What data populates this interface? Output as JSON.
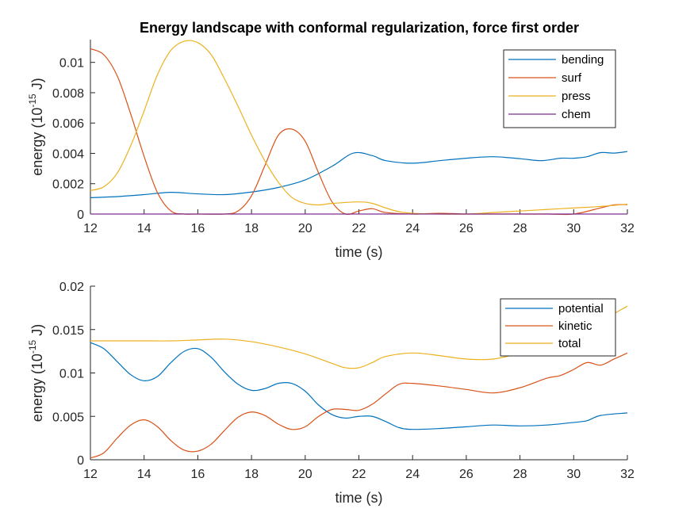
{
  "chart_data": [
    {
      "type": "line",
      "title": "Energy landscape with conformal regularization, force first order",
      "xlabel": "time (s)",
      "ylabel_main": "energy (10",
      "ylabel_sup": "-15",
      "ylabel_end": " J)",
      "xlim": [
        12,
        32
      ],
      "ylim": [
        0,
        0.0115
      ],
      "xticks": [
        12,
        14,
        16,
        18,
        20,
        22,
        24,
        26,
        28,
        30,
        32
      ],
      "xtick_labels": [
        "12",
        "14",
        "16",
        "18",
        "20",
        "22",
        "24",
        "26",
        "28",
        "30",
        "32"
      ],
      "yticks": [
        0,
        0.002,
        0.004,
        0.006,
        0.008,
        0.01
      ],
      "ytick_labels": [
        "0",
        "0.002",
        "0.004",
        "0.006",
        "0.008",
        "0.01"
      ],
      "grid": false,
      "legend_position": "top-right",
      "series": [
        {
          "name": "bending",
          "color": "#0072BD",
          "x": [
            12,
            13,
            14,
            15,
            16,
            17,
            18,
            19,
            20,
            21,
            21.8,
            22.5,
            23,
            24,
            25,
            26,
            27,
            28,
            28.8,
            29.5,
            30,
            30.5,
            31,
            31.5,
            32
          ],
          "y": [
            0.00108,
            0.00115,
            0.00128,
            0.00143,
            0.00133,
            0.00128,
            0.00145,
            0.00175,
            0.00225,
            0.00315,
            0.00402,
            0.00385,
            0.00352,
            0.00335,
            0.00352,
            0.00368,
            0.00378,
            0.00365,
            0.00352,
            0.00368,
            0.00368,
            0.00378,
            0.00405,
            0.00402,
            0.00412
          ]
        },
        {
          "name": "surf",
          "color": "#D95319",
          "x": [
            12,
            12.5,
            13,
            13.5,
            14,
            14.5,
            15,
            15.5,
            16,
            17,
            17.5,
            18,
            18.5,
            19,
            19.5,
            20,
            20.5,
            21,
            21.5,
            22,
            22.5,
            23,
            24,
            25,
            26,
            27,
            28,
            29,
            30,
            31,
            31.5,
            32
          ],
          "y": [
            0.0109,
            0.0105,
            0.0091,
            0.0066,
            0.0038,
            0.0014,
            0.0002,
            0,
            0,
            0,
            0.0002,
            0.0012,
            0.0032,
            0.0052,
            0.0056,
            0.0048,
            0.0027,
            0.0008,
            0,
            0.0002,
            0.00035,
            0.0001,
            0,
            5e-05,
            0,
            0,
            0,
            0,
            0,
            0.0004,
            0.0006,
            0.00062
          ]
        },
        {
          "name": "press",
          "color": "#EDB120",
          "x": [
            12,
            12.5,
            13,
            13.5,
            14,
            14.5,
            15,
            15.5,
            16,
            16.5,
            17,
            17.5,
            18,
            18.5,
            19,
            19.5,
            20,
            20.5,
            21,
            22,
            22.5,
            23,
            23.5,
            24,
            25,
            26,
            27,
            28,
            29,
            30,
            31,
            32
          ],
          "y": [
            0.00155,
            0.0018,
            0.0027,
            0.0045,
            0.0068,
            0.0092,
            0.0108,
            0.0114,
            0.0113,
            0.0105,
            0.0089,
            0.0071,
            0.0052,
            0.0035,
            0.0021,
            0.0011,
            0.0007,
            0.0006,
            0.0007,
            0.0008,
            0.0007,
            0.0004,
            0.00015,
            5e-05,
            0,
            0,
            0.0001,
            0.0002,
            0.0003,
            0.0004,
            0.0005,
            0.00065
          ]
        },
        {
          "name": "chem",
          "color": "#7E2F8E",
          "x": [
            12,
            32
          ],
          "y": [
            0,
            0
          ]
        }
      ]
    },
    {
      "type": "line",
      "title": "",
      "xlabel": "time (s)",
      "ylabel_main": "energy (10",
      "ylabel_sup": "-15",
      "ylabel_end": " J)",
      "xlim": [
        12,
        32
      ],
      "ylim": [
        0,
        0.02
      ],
      "xticks": [
        12,
        14,
        16,
        18,
        20,
        22,
        24,
        26,
        28,
        30,
        32
      ],
      "xtick_labels": [
        "12",
        "14",
        "16",
        "18",
        "20",
        "22",
        "24",
        "26",
        "28",
        "30",
        "32"
      ],
      "yticks": [
        0,
        0.005,
        0.01,
        0.015,
        0.02
      ],
      "ytick_labels": [
        "0",
        "0.005",
        "0.01",
        "0.015",
        "0.02"
      ],
      "grid": false,
      "legend_position": "top-right",
      "series": [
        {
          "name": "potential",
          "color": "#0072BD",
          "x": [
            12,
            12.5,
            13,
            13.5,
            14,
            14.5,
            15,
            15.5,
            16,
            16.5,
            17,
            17.5,
            18,
            18.5,
            19,
            19.5,
            20,
            20.5,
            21,
            21.5,
            22,
            22.5,
            23,
            23.5,
            24,
            25,
            26,
            27,
            28,
            29,
            30,
            30.5,
            31,
            32
          ],
          "y": [
            0.0135,
            0.0128,
            0.0113,
            0.0098,
            0.0091,
            0.0096,
            0.0112,
            0.0125,
            0.0128,
            0.0118,
            0.0101,
            0.0087,
            0.008,
            0.0082,
            0.0088,
            0.0088,
            0.0079,
            0.0063,
            0.0052,
            0.0048,
            0.005,
            0.005,
            0.0044,
            0.0037,
            0.0035,
            0.0036,
            0.0038,
            0.004,
            0.0039,
            0.004,
            0.0043,
            0.0045,
            0.0051,
            0.0054
          ]
        },
        {
          "name": "kinetic",
          "color": "#D95319",
          "x": [
            12,
            12.5,
            13,
            13.5,
            14,
            14.5,
            15,
            15.5,
            16,
            16.5,
            17,
            17.5,
            18,
            18.5,
            19,
            19.5,
            20,
            20.5,
            21,
            21.5,
            22,
            22.5,
            23,
            23.5,
            24,
            25,
            26,
            27,
            28,
            29,
            29.5,
            30,
            30.5,
            31,
            31.5,
            32
          ],
          "y": [
            0.0002,
            0.0008,
            0.0025,
            0.004,
            0.0046,
            0.0038,
            0.0022,
            0.0011,
            0.001,
            0.0018,
            0.0034,
            0.0049,
            0.0055,
            0.0051,
            0.0041,
            0.0035,
            0.0038,
            0.005,
            0.0058,
            0.0058,
            0.0057,
            0.0064,
            0.0076,
            0.0087,
            0.0088,
            0.0085,
            0.0081,
            0.0077,
            0.0083,
            0.0094,
            0.0097,
            0.0104,
            0.0112,
            0.0109,
            0.0116,
            0.0123
          ]
        },
        {
          "name": "total",
          "color": "#EDB120",
          "x": [
            12,
            13,
            14,
            15,
            16,
            17,
            18,
            19,
            20,
            21,
            21.5,
            22,
            22.5,
            23,
            24,
            25,
            26,
            27,
            28,
            29,
            29.5,
            30,
            31,
            32
          ],
          "y": [
            0.0137,
            0.0137,
            0.0137,
            0.0137,
            0.0138,
            0.0139,
            0.0136,
            0.013,
            0.0122,
            0.0111,
            0.0106,
            0.0106,
            0.0112,
            0.0119,
            0.0123,
            0.012,
            0.0116,
            0.0116,
            0.0123,
            0.0133,
            0.0138,
            0.0146,
            0.016,
            0.0177
          ]
        }
      ]
    }
  ]
}
